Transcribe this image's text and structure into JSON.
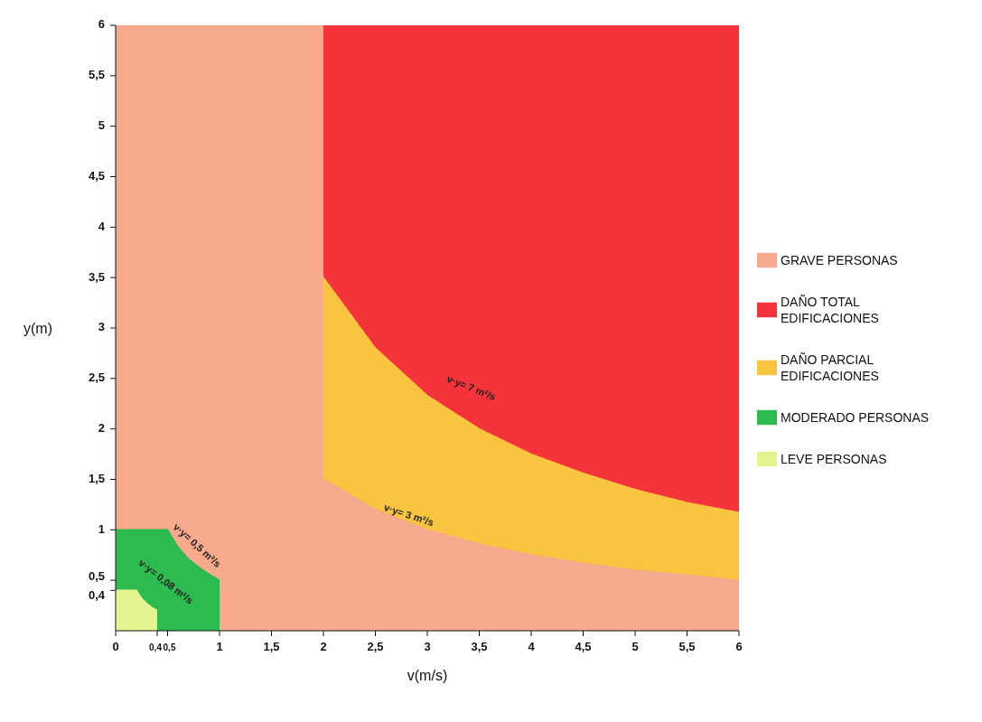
{
  "chart_data": {
    "type": "area",
    "xlabel": "v(m/s)",
    "ylabel": "y(m)",
    "xlim": [
      0,
      6
    ],
    "ylim": [
      0,
      6
    ],
    "xticks": [
      0,
      {
        "value": 0.4,
        "label": "0,4"
      },
      {
        "value": 0.5,
        "label": "0,5"
      },
      1,
      {
        "value": 1.5,
        "label": "1,5"
      },
      2,
      {
        "value": 2.5,
        "label": "2,5"
      },
      3,
      {
        "value": 3.5,
        "label": "3,5"
      },
      4,
      {
        "value": 4.5,
        "label": "4,5"
      },
      5,
      {
        "value": 5.5,
        "label": "5,5"
      },
      6
    ],
    "yticks": [
      {
        "value": 0.4,
        "label": "0,4"
      },
      {
        "value": 0.5,
        "label": "0,5"
      },
      1,
      {
        "value": 1.5,
        "label": "1,5"
      },
      2,
      {
        "value": 2.5,
        "label": "2,5"
      },
      3,
      {
        "value": 3.5,
        "label": "3,5"
      },
      4,
      {
        "value": 4.5,
        "label": "4,5"
      },
      5,
      {
        "value": 5.5,
        "label": "5,5"
      },
      6
    ],
    "grid": false,
    "legend": "right",
    "series": [
      {
        "name": "GRAVE PERSONAS",
        "color": "#f6a98d",
        "x": [
          0,
          6
        ],
        "values": [
          6,
          6
        ]
      },
      {
        "name": "DAÑO TOTAL EDIFICACIONES",
        "color": "#f5333a",
        "x": [
          2,
          6
        ],
        "values": [
          6,
          6
        ]
      },
      {
        "name": "DAÑO PARCIAL EDIFICACIONES",
        "color": "#f9c440",
        "x": [
          2,
          2.5,
          3,
          3.5,
          4,
          4.5,
          5,
          5.5,
          6
        ],
        "values": [
          3.5,
          2.8,
          2.33,
          2,
          1.75,
          1.56,
          1.4,
          1.27,
          1.17
        ]
      },
      {
        "color": "#f6a98d",
        "x": [
          2,
          2.5,
          3,
          3.5,
          4,
          4.5,
          5,
          5.5,
          6
        ],
        "values": [
          1.5,
          1.2,
          1,
          0.86,
          0.75,
          0.67,
          0.6,
          0.55,
          0.5
        ]
      },
      {
        "name": "MODERADO PERSONAS",
        "color": "#2dbb4f",
        "x": [
          0,
          0.5,
          0.6,
          0.7,
          0.8,
          0.9,
          1
        ],
        "values": [
          1,
          1,
          0.83,
          0.71,
          0.63,
          0.56,
          0.5
        ]
      },
      {
        "name": "LEVE PERSONAS",
        "color": "#e4f590",
        "x": [
          0,
          0.2,
          0.25,
          0.3,
          0.35,
          0.4
        ],
        "values": [
          0.4,
          0.4,
          0.32,
          0.27,
          0.23,
          0.2
        ]
      }
    ],
    "annotations": [
      "v·y= 7 m²/s",
      "v·y= 3 m²/s",
      "v·y= 0,5 m²/s",
      "v·y= 0,08 m²/s"
    ]
  }
}
